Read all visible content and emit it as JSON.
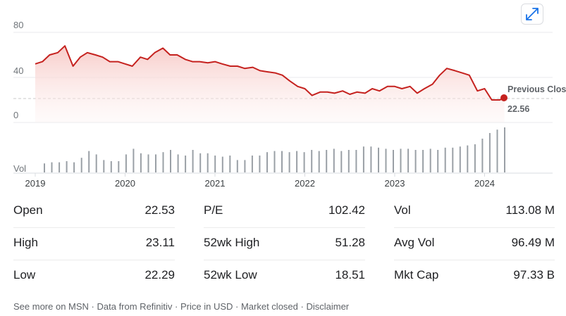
{
  "chart_data": {
    "type": "line",
    "y_axis_labels": [
      "80",
      "40",
      "0"
    ],
    "ylim": [
      0,
      80
    ],
    "x_axis_labels": [
      "2019",
      "2020",
      "2021",
      "2022",
      "2023",
      "2024"
    ],
    "volume_label": "Vol",
    "previous_close": {
      "label": "Previous Close:",
      "value": 22.56,
      "value_text": "22.56"
    },
    "price_series": {
      "x": [
        2019.0,
        2019.08,
        2019.16,
        2019.25,
        2019.33,
        2019.42,
        2019.5,
        2019.58,
        2019.67,
        2019.75,
        2019.83,
        2019.92,
        2020.0,
        2020.08,
        2020.17,
        2020.25,
        2020.33,
        2020.42,
        2020.5,
        2020.58,
        2020.67,
        2020.75,
        2020.83,
        2020.92,
        2021.0,
        2021.08,
        2021.17,
        2021.25,
        2021.33,
        2021.42,
        2021.5,
        2021.58,
        2021.67,
        2021.75,
        2021.83,
        2021.92,
        2022.0,
        2022.08,
        2022.17,
        2022.25,
        2022.33,
        2022.42,
        2022.5,
        2022.58,
        2022.67,
        2022.75,
        2022.83,
        2022.92,
        2023.0,
        2023.08,
        2023.17,
        2023.25,
        2023.33,
        2023.42,
        2023.5,
        2023.58,
        2023.67,
        2023.75,
        2023.83,
        2023.92,
        2024.0,
        2024.08,
        2024.17,
        2024.22
      ],
      "y": [
        52,
        54,
        60,
        62,
        68,
        50,
        58,
        62,
        60,
        58,
        54,
        54,
        52,
        50,
        58,
        56,
        62,
        66,
        60,
        60,
        56,
        54,
        54,
        53,
        54,
        52,
        50,
        50,
        48,
        49,
        46,
        45,
        44,
        42,
        37,
        32,
        30,
        24,
        27,
        27,
        26,
        28,
        25,
        27,
        26,
        30,
        28,
        32,
        32,
        30,
        32,
        26,
        30,
        34,
        42,
        48,
        46,
        44,
        42,
        28,
        30,
        20,
        20,
        22.5
      ]
    },
    "volume_bars": [
      8,
      9,
      9,
      10,
      9,
      13,
      19,
      16,
      11,
      10,
      10,
      16,
      21,
      17,
      16,
      16,
      18,
      20,
      16,
      15,
      20,
      17,
      17,
      15,
      14,
      15,
      11,
      11,
      15,
      15,
      18,
      19,
      19,
      18,
      19,
      18,
      20,
      19,
      20,
      21,
      19,
      20,
      20,
      23,
      23,
      22,
      21,
      20,
      21,
      21,
      20,
      20,
      21,
      20,
      22,
      22,
      23,
      24,
      25,
      30,
      35,
      38,
      40
    ]
  },
  "icons": {
    "expand": "expand-arrows-icon"
  },
  "stats": {
    "col1": [
      {
        "label": "Open",
        "value": "22.53"
      },
      {
        "label": "High",
        "value": "23.11"
      },
      {
        "label": "Low",
        "value": "22.29"
      }
    ],
    "col2": [
      {
        "label": "P/E",
        "value": "102.42"
      },
      {
        "label": "52wk High",
        "value": "51.28"
      },
      {
        "label": "52wk Low",
        "value": "18.51"
      }
    ],
    "col3": [
      {
        "label": "Vol",
        "value": "113.08 M"
      },
      {
        "label": "Avg Vol",
        "value": "96.49 M"
      },
      {
        "label": "Mkt Cap",
        "value": "97.33 B"
      }
    ]
  },
  "footer": {
    "see_more": "See more on MSN",
    "data_from": "Data from Refinitiv",
    "price_in": "Price in USD",
    "market": "Market closed",
    "disclaimer": "Disclaimer",
    "sep": " · "
  },
  "colors": {
    "line": "#c5221f",
    "fill": "#f9d8d6",
    "grid": "#e8eaed",
    "bars": "#9aa0a6",
    "dot": "#c5221f"
  }
}
